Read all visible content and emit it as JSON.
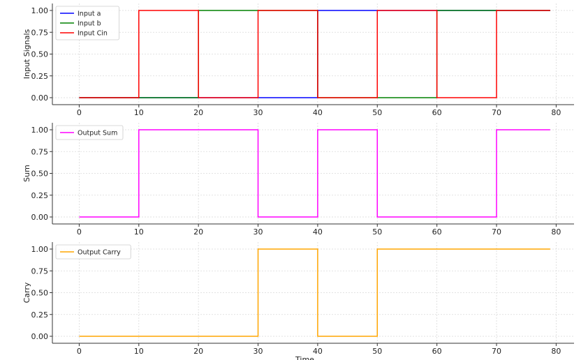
{
  "chart_data": [
    {
      "type": "line",
      "ylabel": "Input Signals",
      "xlabel": "",
      "xlim": [
        -4.5,
        83
      ],
      "ylim": [
        -0.08,
        1.08
      ],
      "xticks": [
        0,
        10,
        20,
        30,
        40,
        50,
        60,
        70,
        80
      ],
      "yticks": [
        0.0,
        0.25,
        0.5,
        0.75,
        1.0
      ],
      "grid": true,
      "legend": "upper-left",
      "x": [
        0,
        10,
        20,
        30,
        40,
        50,
        60,
        70,
        79
      ],
      "series": [
        {
          "name": "Input a",
          "color": "#0000ff",
          "values": [
            0,
            0,
            0,
            0,
            1,
            1,
            1,
            1,
            1
          ]
        },
        {
          "name": "Input b",
          "color": "#008000",
          "values": [
            0,
            0,
            1,
            1,
            0,
            0,
            1,
            1,
            1
          ]
        },
        {
          "name": "Input Cin",
          "color": "#ff0000",
          "values": [
            0,
            1,
            0,
            1,
            0,
            1,
            0,
            1,
            1
          ]
        }
      ]
    },
    {
      "type": "line",
      "ylabel": "Sum",
      "xlabel": "",
      "xlim": [
        -4.5,
        83
      ],
      "ylim": [
        -0.08,
        1.08
      ],
      "xticks": [
        0,
        10,
        20,
        30,
        40,
        50,
        60,
        70,
        80
      ],
      "yticks": [
        0.0,
        0.25,
        0.5,
        0.75,
        1.0
      ],
      "grid": true,
      "legend": "upper-left",
      "x": [
        0,
        10,
        20,
        30,
        40,
        50,
        60,
        70,
        79
      ],
      "series": [
        {
          "name": "Output Sum",
          "color": "#ff00ff",
          "values": [
            0,
            1,
            1,
            0,
            1,
            0,
            0,
            1,
            1
          ]
        }
      ]
    },
    {
      "type": "line",
      "ylabel": "Carry",
      "xlabel": "Time",
      "xlim": [
        -4.5,
        83
      ],
      "ylim": [
        -0.08,
        1.08
      ],
      "xticks": [
        0,
        10,
        20,
        30,
        40,
        50,
        60,
        70,
        80
      ],
      "yticks": [
        0.0,
        0.25,
        0.5,
        0.75,
        1.0
      ],
      "grid": true,
      "legend": "upper-left",
      "x": [
        0,
        10,
        20,
        30,
        40,
        50,
        60,
        70,
        79
      ],
      "series": [
        {
          "name": "Output Carry",
          "color": "#ffa500",
          "values": [
            0,
            0,
            0,
            1,
            0,
            1,
            1,
            1,
            1
          ]
        }
      ]
    }
  ]
}
